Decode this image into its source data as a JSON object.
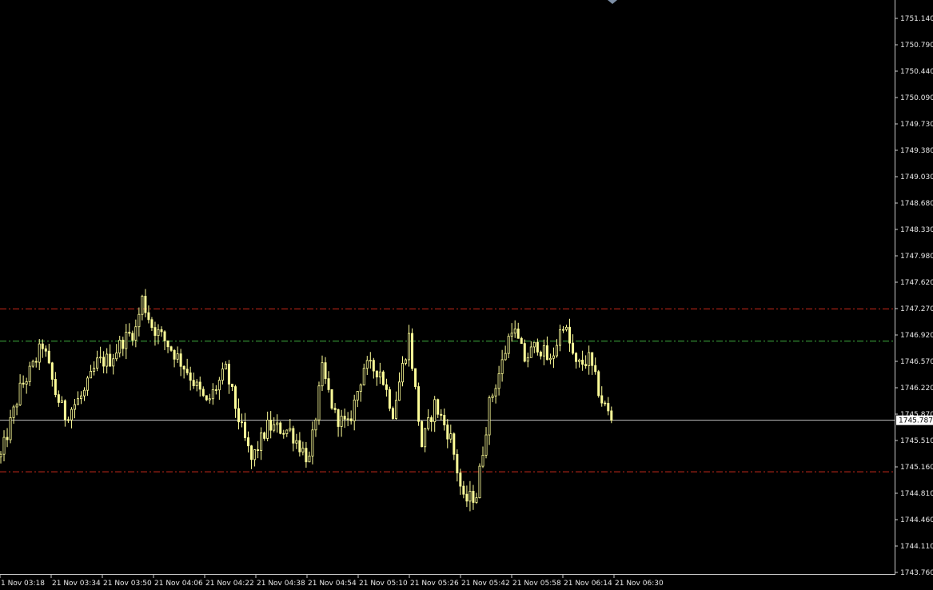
{
  "chart_data": {
    "type": "candlestick",
    "title": "",
    "xlabel": "",
    "ylabel": "",
    "ylim": [
      1743.76,
      1751.14
    ],
    "background": "#000000",
    "candle_color": "#ffff99",
    "grid": false,
    "y_ticks": [
      "1751.140",
      "1750.790",
      "1750.440",
      "1750.090",
      "1749.730",
      "1749.380",
      "1749.030",
      "1748.680",
      "1748.330",
      "1747.980",
      "1747.620",
      "1747.270",
      "1746.920",
      "1746.570",
      "1746.220",
      "1745.870",
      "1745.510",
      "1745.160",
      "1744.810",
      "1744.460",
      "1744.110",
      "1743.760"
    ],
    "x_ticks": [
      "1 Nov 03:18",
      "21 Nov 03:34",
      "21 Nov 03:50",
      "21 Nov 04:06",
      "21 Nov 04:22",
      "21 Nov 04:38",
      "21 Nov 04:54",
      "21 Nov 05:10",
      "21 Nov 05:26",
      "21 Nov 05:42",
      "21 Nov 05:58",
      "21 Nov 06:14",
      "21 Nov 06:30"
    ],
    "current_price": 1745.787,
    "current_price_label": "1745.787",
    "current_price_color": "#c0c0c0",
    "horizontal_levels": [
      {
        "value": 1747.27,
        "color": "#cc2a1a",
        "style": "dash-dot"
      },
      {
        "value": 1746.84,
        "color": "#3fae3f",
        "style": "dash-dot"
      },
      {
        "value": 1745.1,
        "color": "#cc2a1a",
        "style": "dash-dot"
      }
    ],
    "trend_waypoints": [
      [
        0,
        1745.3
      ],
      [
        3,
        1745.75
      ],
      [
        6,
        1746.2
      ],
      [
        10,
        1746.5
      ],
      [
        13,
        1746.8
      ],
      [
        17,
        1746.15
      ],
      [
        20,
        1745.85
      ],
      [
        26,
        1746.15
      ],
      [
        30,
        1746.55
      ],
      [
        34,
        1746.6
      ],
      [
        38,
        1746.85
      ],
      [
        42,
        1747.0
      ],
      [
        44,
        1747.4
      ],
      [
        47,
        1747.05
      ],
      [
        52,
        1746.8
      ],
      [
        58,
        1746.45
      ],
      [
        64,
        1746.0
      ],
      [
        70,
        1746.45
      ],
      [
        75,
        1745.65
      ],
      [
        78,
        1745.25
      ],
      [
        83,
        1745.7
      ],
      [
        90,
        1745.65
      ],
      [
        96,
        1745.25
      ],
      [
        100,
        1746.45
      ],
      [
        104,
        1745.85
      ],
      [
        108,
        1745.7
      ],
      [
        113,
        1746.5
      ],
      [
        118,
        1746.45
      ],
      [
        122,
        1745.9
      ],
      [
        127,
        1746.9
      ],
      [
        131,
        1745.45
      ],
      [
        135,
        1746.0
      ],
      [
        140,
        1745.55
      ],
      [
        144,
        1744.7
      ],
      [
        148,
        1744.8
      ],
      [
        152,
        1746.0
      ],
      [
        156,
        1746.55
      ],
      [
        159,
        1747.05
      ],
      [
        163,
        1746.6
      ],
      [
        167,
        1746.8
      ],
      [
        171,
        1746.55
      ],
      [
        175,
        1747.1
      ],
      [
        179,
        1746.5
      ],
      [
        183,
        1746.6
      ],
      [
        187,
        1746.05
      ],
      [
        190,
        1745.8
      ]
    ]
  }
}
